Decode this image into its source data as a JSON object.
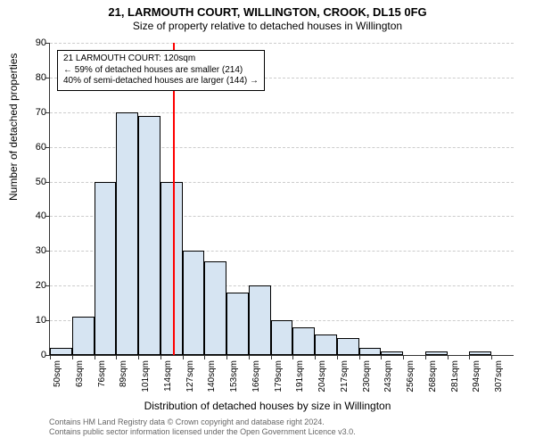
{
  "title_main": "21, LARMOUTH COURT, WILLINGTON, CROOK, DL15 0FG",
  "title_sub": "Size of property relative to detached houses in Willington",
  "y_label": "Number of detached properties",
  "x_label": "Distribution of detached houses by size in Willington",
  "chart": {
    "type": "histogram",
    "background_color": "#ffffff",
    "grid_color": "#cccccc",
    "bar_fill": "#d6e4f2",
    "bar_border": "#000000",
    "ref_line_color": "#ff0000",
    "ref_value_sqm": 120,
    "x_min_sqm": 50,
    "x_bin_sqm": 12.6,
    "x_categories": [
      "50sqm",
      "63sqm",
      "76sqm",
      "89sqm",
      "101sqm",
      "114sqm",
      "127sqm",
      "140sqm",
      "153sqm",
      "166sqm",
      "179sqm",
      "191sqm",
      "204sqm",
      "217sqm",
      "230sqm",
      "243sqm",
      "256sqm",
      "268sqm",
      "281sqm",
      "294sqm",
      "307sqm"
    ],
    "y_max": 90,
    "y_tick_step": 10,
    "values": [
      2,
      11,
      50,
      70,
      69,
      50,
      30,
      27,
      18,
      20,
      10,
      8,
      6,
      5,
      2,
      1,
      0,
      1,
      0,
      1,
      0
    ]
  },
  "annotation": {
    "line1": "21 LARMOUTH COURT: 120sqm",
    "line2": "← 59% of detached houses are smaller (214)",
    "line3": "40% of semi-detached houses are larger (144) →"
  },
  "attribution": {
    "line1": "Contains HM Land Registry data © Crown copyright and database right 2024.",
    "line2": "Contains public sector information licensed under the Open Government Licence v3.0."
  }
}
